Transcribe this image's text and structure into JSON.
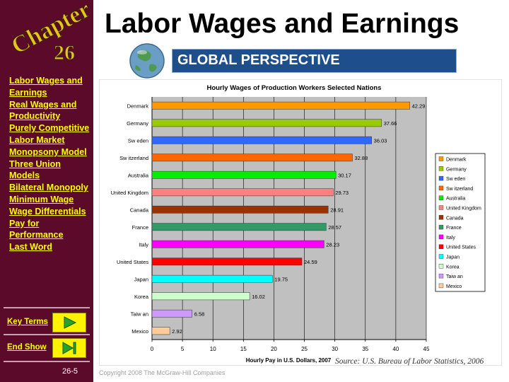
{
  "sidebar": {
    "chapter_word": "Chapter",
    "chapter_number": "26",
    "nav_items": [
      "Labor Wages and Earnings",
      "Real Wages and Productivity",
      "Purely Competitive Labor Market",
      "Monopsony Model",
      "Three Union Models",
      "Bilateral Monopoly",
      "Minimum Wage",
      "Wage Differentials",
      "Pay for Performance",
      "Last Word"
    ],
    "key_terms_label": "Key Terms",
    "end_show_label": "End Show",
    "slide_number": "26-5"
  },
  "header": {
    "title": "Labor Wages and Earnings",
    "banner": "GLOBAL PERSPECTIVE"
  },
  "footer": {
    "copyright": "Copyright 2008 The McGraw-Hill Companies",
    "source": "Source: U.S. Bureau of Labor Statistics, 2006"
  },
  "colors": {
    "sidebar_bg": "#5c0a2a",
    "nav_text": "#ffff00",
    "banner_bg": "#1e4e8c",
    "plot_bg": "#c0c0c0"
  },
  "icons": [
    "globe-icon",
    "play-arrow-icon",
    "end-show-icon"
  ],
  "chart_data": {
    "type": "bar",
    "orientation": "horizontal",
    "title": "Hourly Wages of Production Workers Selected Nations",
    "xlabel": "Hourly Pay in U.S. Dollars, 2007",
    "ylabel": "",
    "xlim": [
      0,
      45
    ],
    "ticks": [
      0,
      5,
      10,
      15,
      20,
      25,
      30,
      35,
      40,
      45
    ],
    "grid": true,
    "legend": "right",
    "categories": [
      "Denmark",
      "Germany",
      "Sw eden",
      "Sw itzerland",
      "Australia",
      "United Kingdom",
      "Canada",
      "France",
      "Italy",
      "United States",
      "Japan",
      "Korea",
      "Taiw an",
      "Mexico"
    ],
    "values": [
      42.29,
      37.66,
      36.03,
      32.88,
      30.17,
      29.73,
      28.91,
      28.57,
      28.23,
      24.59,
      19.75,
      16.02,
      6.58,
      2.92
    ],
    "labels": [
      "42.29",
      "37.66",
      "36.03",
      "32.88",
      "30.17",
      "29.73",
      "28.91",
      "28.57",
      "28.23",
      "24.59",
      "19.75",
      "16.02",
      "6.58",
      "2.92"
    ],
    "colors": [
      "#ff9900",
      "#99cc00",
      "#3366ff",
      "#ff6600",
      "#00ee00",
      "#ff8080",
      "#993300",
      "#339966",
      "#ff00ff",
      "#ff0000",
      "#00ffff",
      "#ccffcc",
      "#cc99ff",
      "#ffcc99"
    ]
  }
}
